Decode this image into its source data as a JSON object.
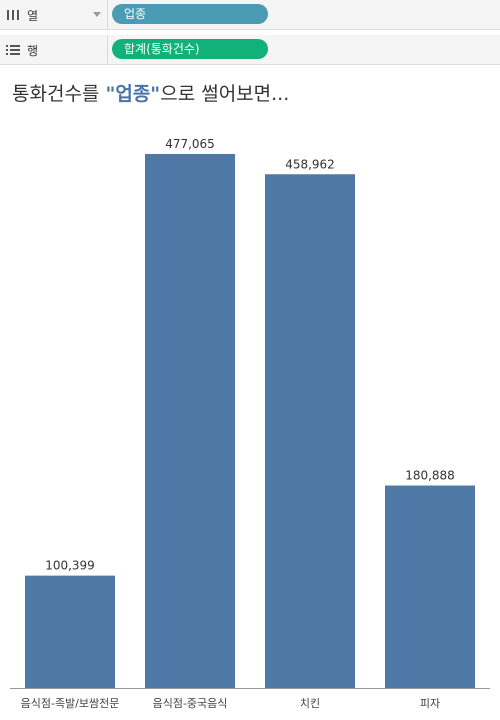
{
  "shelves": {
    "columns": {
      "icon": "columns-shelf-icon",
      "label": "열",
      "pill": "업종",
      "pill_color": "#4a9bb3"
    },
    "rows": {
      "icon": "rows-shelf-icon",
      "label": "행",
      "pill": "합계(통화건수)",
      "pill_color": "#10b27a"
    }
  },
  "title": {
    "prefix": "통화건수를 ",
    "highlight": "\"업종\"",
    "suffix": "으로 썰어보면..."
  },
  "chart_data": {
    "type": "bar",
    "categories": [
      "음식점-족발/보쌈전문",
      "음식점-중국음식",
      "치킨",
      "피자"
    ],
    "values": [
      100399,
      477065,
      458962,
      180888
    ],
    "value_labels": [
      "100,399",
      "477,065",
      "458,962",
      "180,888"
    ],
    "bar_color": "#4e79a7",
    "ylim": [
      0,
      500000
    ],
    "grid": false,
    "legend": "none"
  }
}
